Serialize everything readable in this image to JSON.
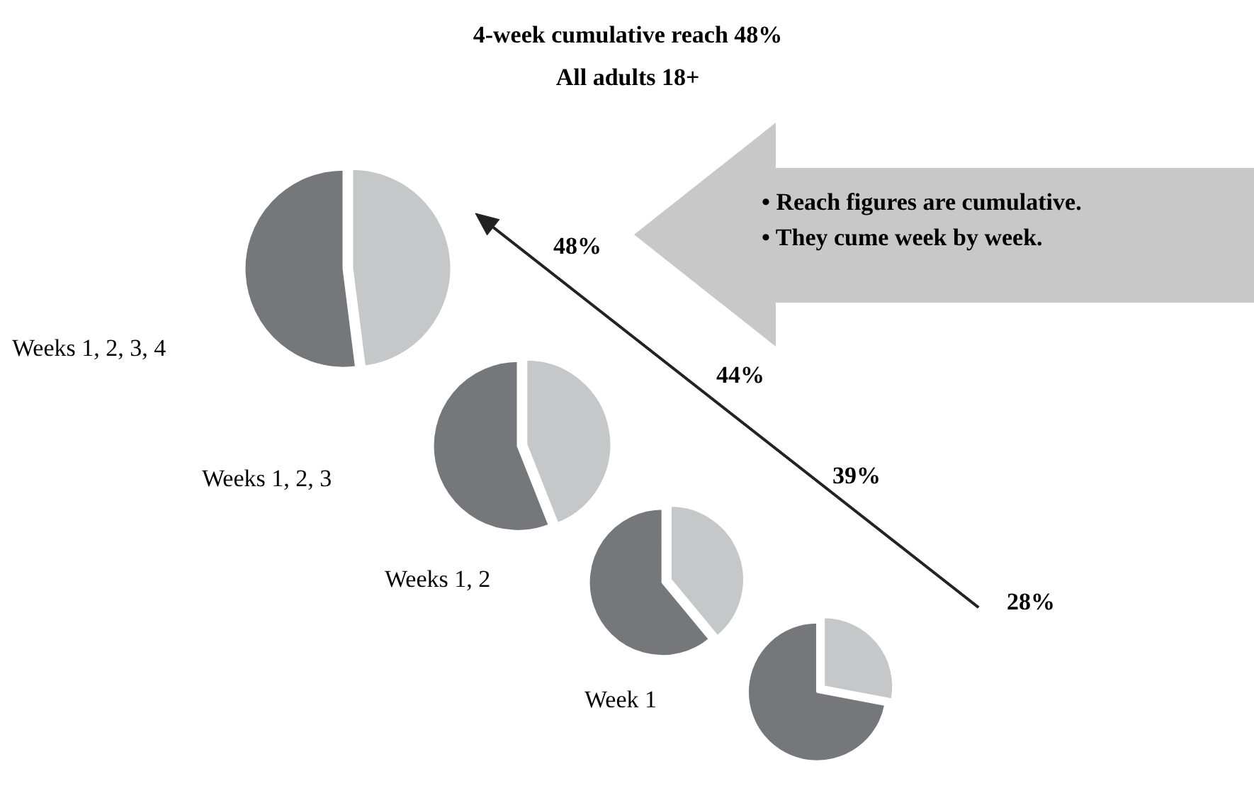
{
  "chart_data": [
    {
      "type": "other",
      "title": "4-week cumulative reach 48%",
      "subtitle": "All adults 18+",
      "annotations": [
        "• Reach figures are cumulative.",
        "• They cume week by week."
      ]
    },
    {
      "type": "pie",
      "title": "Weeks 1, 2, 3, 4",
      "categories": [
        null,
        null
      ],
      "values": [
        48,
        52
      ],
      "colors": [
        "#c6c7c9",
        "#76777b"
      ],
      "annotations": [
        "48%"
      ]
    },
    {
      "type": "pie",
      "title": "Weeks 1, 2, 3",
      "categories": [
        null,
        null
      ],
      "values": [
        44,
        56
      ],
      "colors": [
        "#c6c7c9",
        "#76777b"
      ],
      "annotations": [
        "44%"
      ]
    },
    {
      "type": "pie",
      "title": "Weeks 1, 2",
      "categories": [
        null,
        null
      ],
      "values": [
        39,
        61
      ],
      "colors": [
        "#c6c7c9",
        "#76777b"
      ],
      "annotations": [
        "39%"
      ]
    },
    {
      "type": "pie",
      "title": "Week 1",
      "categories": [
        null,
        null
      ],
      "values": [
        28,
        72
      ],
      "colors": [
        "#c6c7c9",
        "#76777b"
      ],
      "annotations": [
        "28%"
      ]
    }
  ]
}
